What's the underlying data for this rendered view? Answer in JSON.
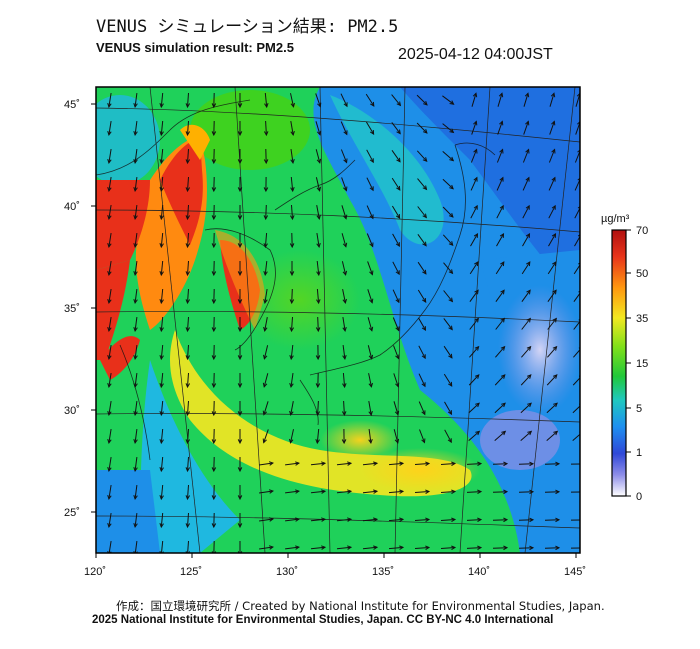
{
  "title_jp": "VENUS シミュレーション結果: PM2.5",
  "title_en": "VENUS simulation result: PM2.5",
  "timestamp": "2025-04-12 04:00JST",
  "map": {
    "lon_labels": [
      "120˚",
      "125˚",
      "130˚",
      "135˚",
      "140˚",
      "145˚"
    ],
    "lat_labels": [
      "45˚",
      "40˚",
      "35˚",
      "30˚",
      "25˚"
    ]
  },
  "colorbar": {
    "unit": "µg/m³",
    "labels": [
      "70",
      "50",
      "35",
      "15",
      "5",
      "1",
      "0"
    ],
    "colors": [
      "#c81e1e",
      "#f04a14",
      "#ffb000",
      "#f3f020",
      "#80e51a",
      "#1fcf2c",
      "#1fc8b8",
      "#1e8ff0",
      "#3a4ed8",
      "#8a8ae8",
      "#ffffff"
    ]
  },
  "footer": {
    "credit": "作成：国立環境研究所 / Created by National Institute for Environmental Studies, Japan.",
    "copyright": "2025 National Institute for Environmental Studies, Japan. CC BY-NC 4.0 International"
  }
}
